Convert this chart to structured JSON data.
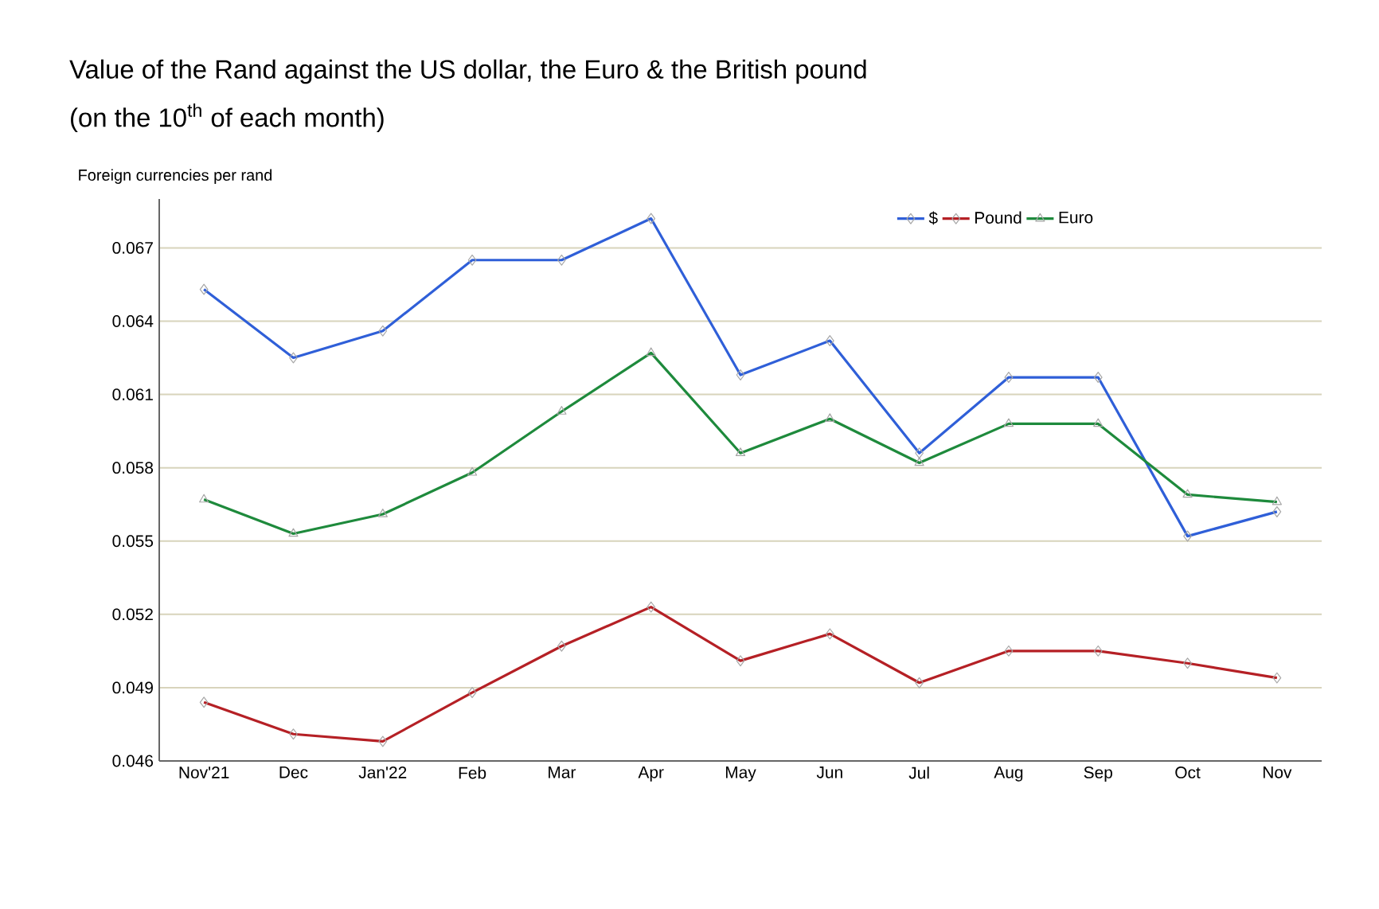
{
  "chart_data": {
    "type": "line",
    "title": "Value of the Rand against the US dollar, the Euro & the British pound",
    "subtitle": "(on the 10$^{th}$ of each month)",
    "ylabel": "Foreign currencies per rand",
    "categories": [
      "Nov'21",
      "Dec",
      "Jan'22",
      "Feb",
      "Mar",
      "Apr",
      "May",
      "Jun",
      "Jul",
      "Aug",
      "Sep",
      "Oct",
      "Nov"
    ],
    "series": [
      {
        "name": "$",
        "color": "#2f5fd8",
        "marker": "diamond",
        "values": [
          0.0653,
          0.0625,
          0.0636,
          0.0665,
          0.0665,
          0.0682,
          0.0618,
          0.0632,
          0.0586,
          0.0617,
          0.0617,
          0.0552,
          0.0562
        ]
      },
      {
        "name": "Pound",
        "color": "#b52025",
        "marker": "diamond",
        "values": [
          0.0484,
          0.0471,
          0.0468,
          0.0488,
          0.0507,
          0.0523,
          0.0501,
          0.0512,
          0.0492,
          0.0505,
          0.0505,
          0.05,
          0.0494
        ]
      },
      {
        "name": "Euro",
        "color": "#1e8a3c",
        "marker": "triangle",
        "values": [
          0.0567,
          0.0553,
          0.0561,
          0.0578,
          0.0603,
          0.0627,
          0.0586,
          0.06,
          0.0582,
          0.0598,
          0.0598,
          0.0569,
          0.0566
        ]
      }
    ],
    "ylim": [
      0.046,
      0.069
    ],
    "yticks": [
      0.046,
      0.049,
      0.052,
      0.055,
      0.058,
      0.061,
      0.064,
      0.067
    ],
    "grid": "y",
    "legend": "top right",
    "line_style": "solid"
  }
}
